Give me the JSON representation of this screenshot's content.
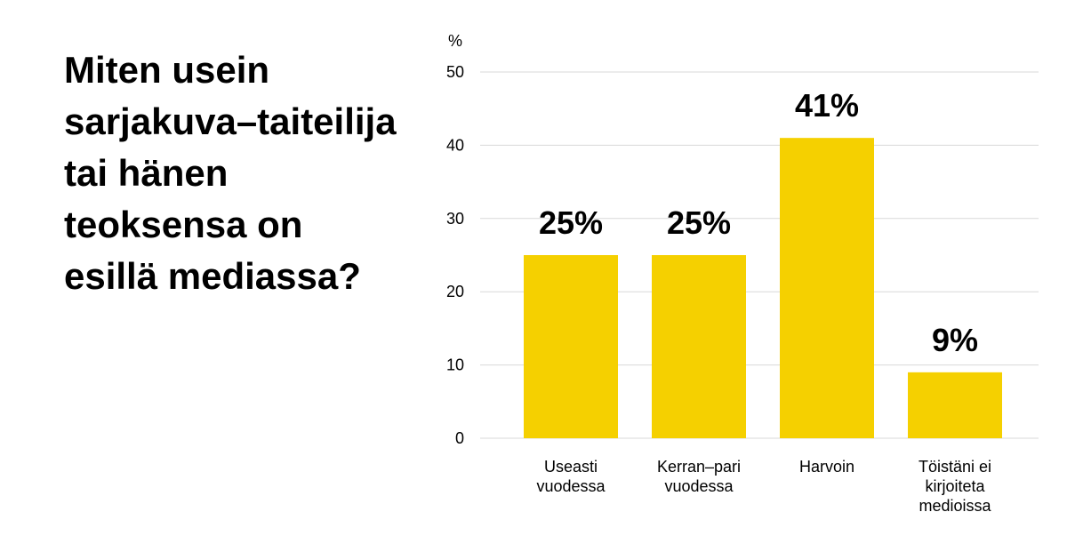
{
  "title": "Miten usein sarjakuva–taiteilija tai hänen teoksensa on esillä mediassa?",
  "chart_data": {
    "type": "bar",
    "categories": [
      [
        "Useasti",
        "vuodessa"
      ],
      [
        "Kerran–pari",
        "vuodessa"
      ],
      [
        "Harvoin"
      ],
      [
        "Töistäni ei",
        "kirjoiteta",
        "medioissa"
      ]
    ],
    "values": [
      25,
      25,
      41,
      9
    ],
    "value_labels": [
      "25%",
      "25%",
      "41%",
      "9%"
    ],
    "ylabel": "%",
    "yticks": [
      0,
      10,
      20,
      30,
      40,
      50
    ],
    "ylim": [
      0,
      50
    ],
    "grid": true,
    "bar_color": "#F5D000",
    "grid_color": "#D9D9D9"
  }
}
